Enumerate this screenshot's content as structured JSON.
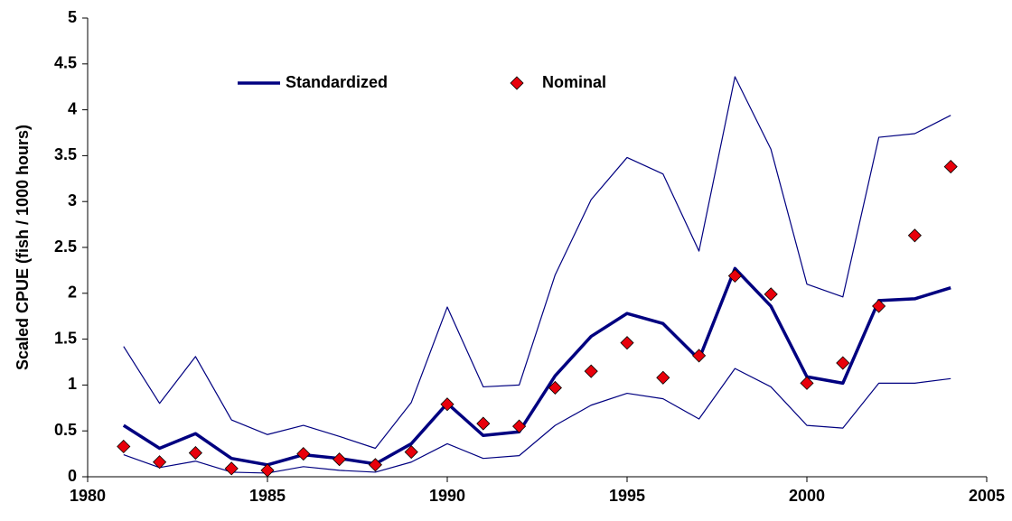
{
  "chart_data": {
    "type": "line",
    "y_label": "Scaled CPUE (fish / 1000 hours)",
    "x": [
      1981,
      1982,
      1983,
      1984,
      1985,
      1986,
      1987,
      1988,
      1989,
      1990,
      1991,
      1992,
      1993,
      1994,
      1995,
      1996,
      1997,
      1998,
      1999,
      2000,
      2001,
      2002,
      2003,
      2004
    ],
    "series": [
      {
        "color": "#000080",
        "line_width": 1.2,
        "values": [
          1.42,
          0.8,
          1.31,
          0.62,
          0.46,
          0.56,
          0.44,
          0.31,
          0.81,
          1.85,
          0.98,
          1.0,
          2.2,
          3.02,
          3.48,
          3.3,
          2.46,
          4.36,
          3.57,
          2.1,
          1.96,
          3.7,
          3.74,
          3.94
        ]
      },
      {
        "name": "Standardized",
        "color": "#000080",
        "line_width": 3.5,
        "values": [
          0.56,
          0.31,
          0.47,
          0.2,
          0.13,
          0.24,
          0.2,
          0.14,
          0.36,
          0.8,
          0.45,
          0.49,
          1.1,
          1.53,
          1.78,
          1.67,
          1.28,
          2.27,
          1.86,
          1.09,
          1.02,
          1.92,
          1.94,
          2.06
        ]
      },
      {
        "color": "#000080",
        "line_width": 1.2,
        "values": [
          0.24,
          0.1,
          0.17,
          0.05,
          0.04,
          0.11,
          0.07,
          0.05,
          0.16,
          0.36,
          0.2,
          0.23,
          0.56,
          0.78,
          0.91,
          0.85,
          0.63,
          1.18,
          0.98,
          0.56,
          0.53,
          1.02,
          1.02,
          1.07
        ]
      },
      {
        "name": "Nominal",
        "color": "#e8000b",
        "marker": "diamond",
        "values": [
          0.33,
          0.16,
          0.26,
          0.09,
          0.07,
          0.25,
          0.19,
          0.13,
          0.27,
          0.79,
          0.58,
          0.55,
          0.97,
          1.15,
          1.46,
          1.08,
          1.32,
          2.19,
          1.99,
          1.02,
          1.24,
          1.86,
          2.63,
          3.38
        ]
      }
    ],
    "xlim": [
      1980,
      2005
    ],
    "xticks": [
      1980,
      1985,
      1990,
      1995,
      2000,
      2005
    ],
    "ylim": [
      0,
      5
    ],
    "yticks": [
      0,
      0.5,
      1,
      1.5,
      2,
      2.5,
      3,
      3.5,
      4,
      4.5,
      5
    ],
    "grid": false
  }
}
